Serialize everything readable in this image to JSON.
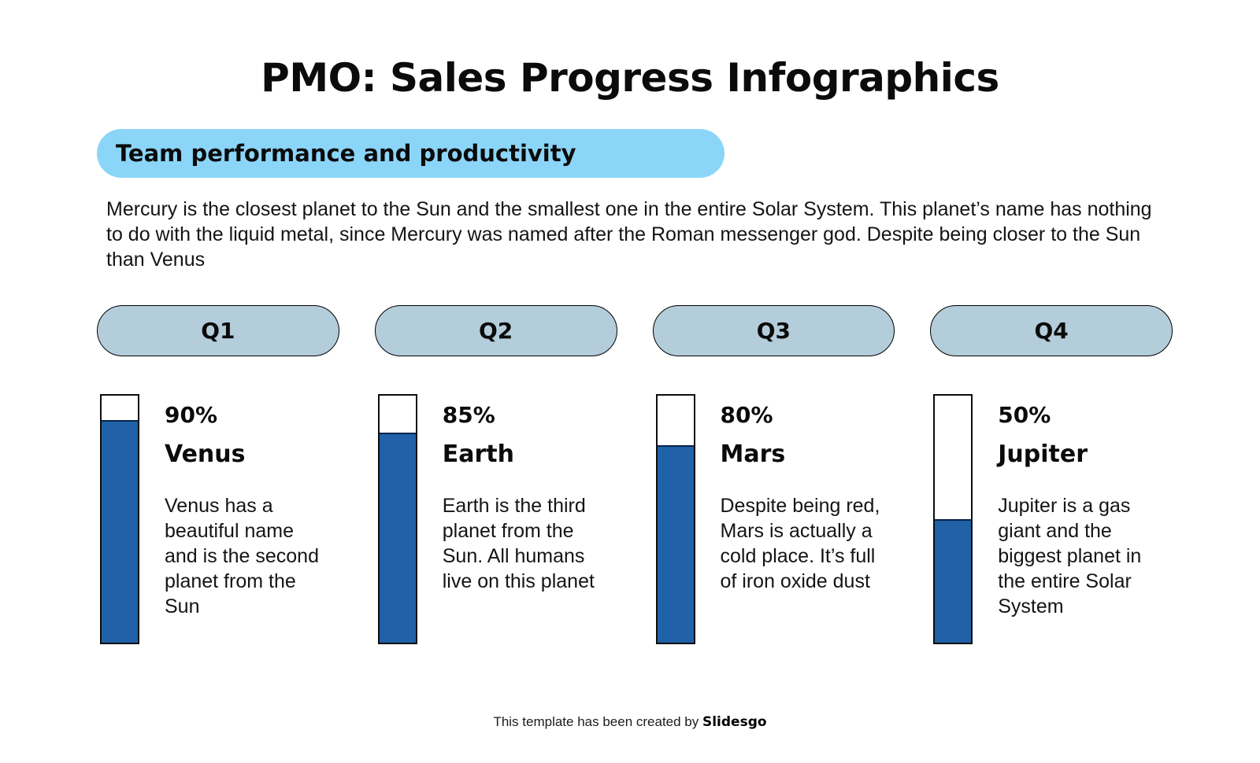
{
  "slide": {
    "title": "PMO: Sales Progress Infographics",
    "subtitle": "Team performance and productivity",
    "intro": "Mercury is the closest planet to the Sun and the smallest one in the entire Solar System. This planet’s name has nothing to do with the liquid metal, since Mercury was named after the Roman messenger god. Despite being closer to the Sun than Venus",
    "footer": {
      "prefix": "This template has been created by ",
      "brand": "Slidesgo"
    }
  },
  "colors": {
    "subtitle_pill_bg": "#8BD5F9",
    "quarter_pill_bg": "#B4CDDB",
    "bar_fill_blue": "#2061A8",
    "bar_empty": "#FFFFFF",
    "outline_black": "#000000",
    "text_black": "#0E0E0E",
    "background": "#FFFFFF"
  },
  "chart_data": {
    "type": "bar",
    "title": "PMO: Sales Progress Infographics",
    "subtitle": "Team performance and productivity",
    "categories": [
      "Q1",
      "Q2",
      "Q3",
      "Q4"
    ],
    "series": [
      {
        "name": "Team performance and productivity",
        "values": [
          90,
          85,
          80,
          50
        ]
      }
    ],
    "value_labels": [
      "90%",
      "85%",
      "80%",
      "50%"
    ],
    "bar_labels": [
      "Venus",
      "Earth",
      "Mars",
      "Jupiter"
    ],
    "orientation": "vertical",
    "unit": "%",
    "ylim": [
      0,
      100
    ],
    "grid": false,
    "legend": "none"
  },
  "quarters": [
    {
      "label": "Q1",
      "percent": "90%",
      "value": 90,
      "name": "Venus",
      "description": "Venus has a beautiful name and is the second planet from the Sun"
    },
    {
      "label": "Q2",
      "percent": "85%",
      "value": 85,
      "name": "Earth",
      "description": "Earth is the third planet from the Sun. All humans live on this planet"
    },
    {
      "label": "Q3",
      "percent": "80%",
      "value": 80,
      "name": "Mars",
      "description": "Despite being red, Mars is actually a cold place. It’s full of iron oxide dust"
    },
    {
      "label": "Q4",
      "percent": "50%",
      "value": 50,
      "name": "Jupiter",
      "description": "Jupiter is a gas giant and the biggest planet in the entire Solar System"
    }
  ]
}
